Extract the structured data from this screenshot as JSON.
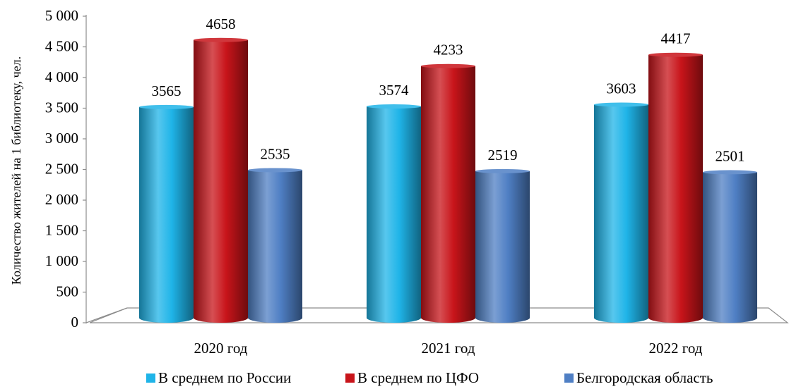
{
  "chart_data": {
    "type": "bar",
    "ylabel": "Количество жителей на 1 библиотеку, чел.",
    "xlabel": "",
    "ylim": [
      0,
      5000
    ],
    "ytick_step": 500,
    "ytick_labels": [
      "0",
      "500",
      "1 000",
      "1 500",
      "2 000",
      "2 500",
      "3 000",
      "3 500",
      "4 000",
      "4 500",
      "5 000"
    ],
    "categories": [
      "2020 год",
      "2021 год",
      "2022 год"
    ],
    "series": [
      {
        "name": "В среднем по России",
        "values": [
          3565,
          3574,
          3603
        ],
        "color": "#1FB4E8"
      },
      {
        "name": "В среднем по ЦФО",
        "values": [
          4658,
          4233,
          4417
        ],
        "color": "#C8141A"
      },
      {
        "name": "Белгородская область",
        "values": [
          2535,
          2519,
          2501
        ],
        "color": "#4F7FC4"
      }
    ],
    "data_labels": true,
    "grid": false,
    "legend_position": "bottom",
    "style": "3d-cylinder-bars"
  }
}
